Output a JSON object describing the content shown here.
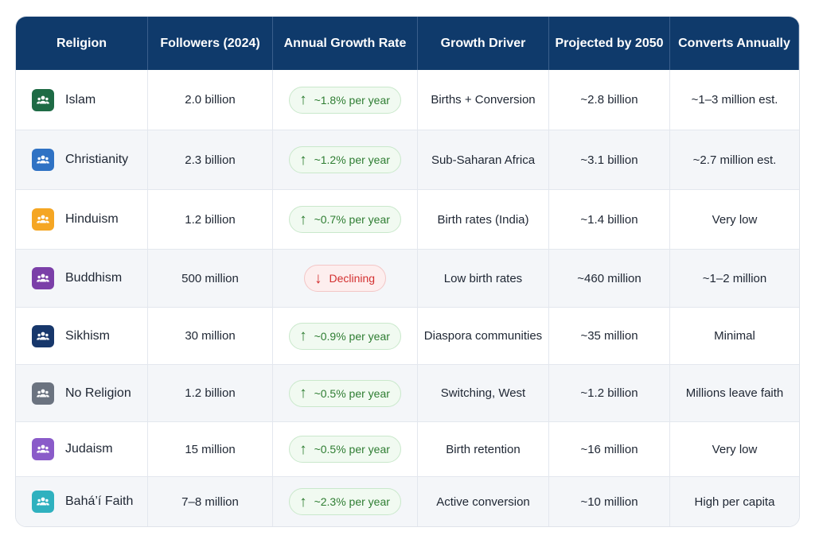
{
  "headers": [
    "Religion",
    "Followers (2024)",
    "Annual Growth Rate",
    "Growth Driver",
    "Projected by 2050",
    "Converts Annually"
  ],
  "rows": [
    {
      "religion": "Islam",
      "icon": "people-icon",
      "icon_color": "#1e6b45",
      "followers": "2.0 billion",
      "growth": "~1.8% per year",
      "trend": "up",
      "driver": "Births + Conversion",
      "projected": "~2.8 billion",
      "converts": "~1–3 million est."
    },
    {
      "religion": "Christianity",
      "icon": "people-icon",
      "icon_color": "#2f72c4",
      "followers": "2.3 billion",
      "growth": "~1.2% per year",
      "trend": "up",
      "driver": "Sub-Saharan Africa",
      "projected": "~3.1 billion",
      "converts": "~2.7 million est."
    },
    {
      "religion": "Hinduism",
      "icon": "people-icon",
      "icon_color": "#f5a623",
      "followers": "1.2 billion",
      "growth": "~0.7% per year",
      "trend": "up",
      "driver": "Birth rates (India)",
      "projected": "~1.4 billion",
      "converts": "Very low"
    },
    {
      "religion": "Buddhism",
      "icon": "people-icon",
      "icon_color": "#7b3fa8",
      "followers": "500 million",
      "growth": "Declining",
      "trend": "down",
      "driver": "Low birth rates",
      "projected": "~460 million",
      "converts": "~1–2 million"
    },
    {
      "religion": "Sikhism",
      "icon": "people-icon",
      "icon_color": "#17376b",
      "followers": "30 million",
      "growth": "~0.9% per year",
      "trend": "up",
      "driver": "Diaspora communities",
      "projected": "~35 million",
      "converts": "Minimal"
    },
    {
      "religion": "No Religion",
      "icon": "people-icon",
      "icon_color": "#6b7380",
      "followers": "1.2 billion",
      "growth": "~0.5% per year",
      "trend": "up",
      "driver": "Switching, West",
      "projected": "~1.2 billion",
      "converts": "Millions leave faith"
    },
    {
      "religion": "Judaism",
      "icon": "people-icon",
      "icon_color": "#8a5bc9",
      "followers": "15 million",
      "growth": "~0.5% per year",
      "trend": "up",
      "driver": "Birth retention",
      "projected": "~16 million",
      "converts": "Very low"
    },
    {
      "religion": "Bahá’í Faith",
      "icon": "people-icon",
      "icon_color": "#2fb1bf",
      "followers": "7–8 million",
      "growth": "~2.3% per year",
      "trend": "up",
      "driver": "Active conversion",
      "projected": "~10 million",
      "converts": "High per capita"
    }
  ],
  "colors": {
    "header_bg": "#0f3a6b",
    "up_green": "#2e7d32",
    "down_red": "#d32f2f"
  }
}
